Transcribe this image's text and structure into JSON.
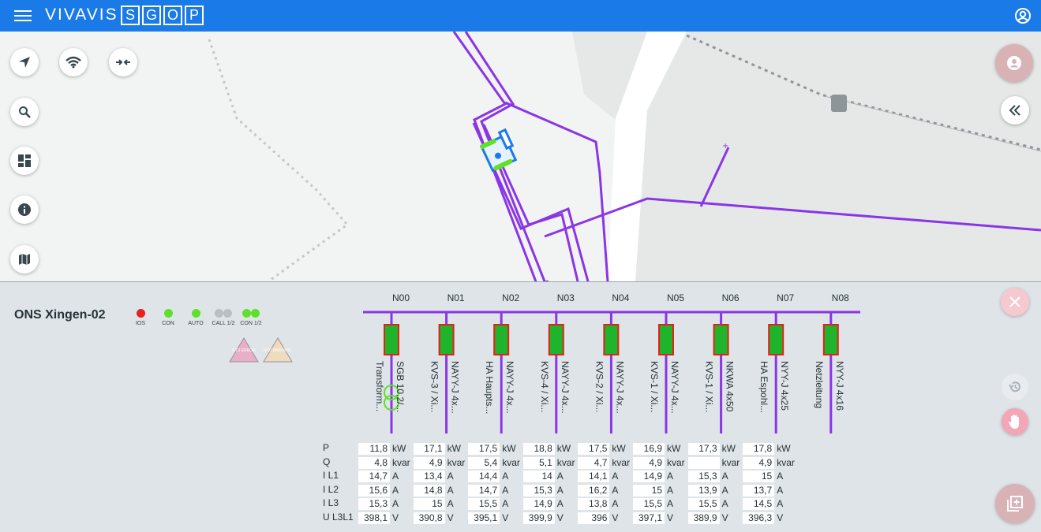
{
  "header": {
    "brand": "VIVAVIS",
    "logo_letters": [
      "S",
      "G",
      "O",
      "P"
    ]
  },
  "map_tools": {
    "left": [
      "location-arrow-icon",
      "wifi-icon",
      "compress-arrows-icon",
      "search-icon",
      "dashboard-icon",
      "info-icon",
      "map-icon"
    ],
    "right": [
      "user-circle-icon",
      "collapse-double-chevron-icon"
    ]
  },
  "station": {
    "name": "ONS Xingen-02",
    "indicators": [
      {
        "label": "IOS",
        "colors": [
          "#e8201e"
        ]
      },
      {
        "label": "CON",
        "colors": [
          "#5fe02a"
        ]
      },
      {
        "label": "AUTO",
        "colors": [
          "#5fe02a"
        ]
      },
      {
        "label": "CALL 1/2",
        "colors": [
          "#b9bfc3",
          "#b9bfc3"
        ]
      },
      {
        "label": "CON 1/2",
        "colors": [
          "#5fe02a",
          "#5fe02a"
        ]
      }
    ],
    "warnings": [
      {
        "label": "RTU ERROR",
        "color": "#e7b0c7"
      },
      {
        "label": "RTU WARNING",
        "color": "#eedcc0"
      }
    ]
  },
  "feeders": [
    {
      "id": "N00",
      "desc1": "Transform...",
      "desc2": "SGB 10,2/..."
    },
    {
      "id": "N01",
      "desc1": "KVS-3 / Xi...",
      "desc2": "NAYY-J 4x..."
    },
    {
      "id": "N02",
      "desc1": "HA Haupts...",
      "desc2": "NAYY-J 4x..."
    },
    {
      "id": "N03",
      "desc1": "KVS-4 / Xi...",
      "desc2": "NAYY-J 4x..."
    },
    {
      "id": "N04",
      "desc1": "KVS-2 / Xi...",
      "desc2": "NAYY-J 4x..."
    },
    {
      "id": "N05",
      "desc1": "KVS-1 / Xi...",
      "desc2": "NAYY-J 4x..."
    },
    {
      "id": "N06",
      "desc1": "KVS-1 / Xi...",
      "desc2": "NKWA 4x50"
    },
    {
      "id": "N07",
      "desc1": "HA Espohl...",
      "desc2": "NYY-J 4x25"
    },
    {
      "id": "N08",
      "desc1": "Netzleitung",
      "desc2": "NYY-J 4x16"
    }
  ],
  "measurements": {
    "rows": [
      {
        "label": "P",
        "unit": "kW",
        "values": [
          "11,8",
          "17,1",
          "17,5",
          "18,8",
          "17,5",
          "16,9",
          "17,3",
          "17,8"
        ]
      },
      {
        "label": "Q",
        "unit": "kvar",
        "values": [
          "4,8",
          "4,9",
          "5,4",
          "5,1",
          "4,7",
          "4,9",
          "",
          "4,9"
        ]
      },
      {
        "label": "I L1",
        "unit": "A",
        "values": [
          "14,7",
          "13,4",
          "14,4",
          "14",
          "14,1",
          "14,9",
          "15,3",
          "15"
        ]
      },
      {
        "label": "I L2",
        "unit": "A",
        "values": [
          "15,6",
          "14,8",
          "14,7",
          "15,3",
          "16,2",
          "15",
          "13,9",
          "13,7"
        ]
      },
      {
        "label": "I L3",
        "unit": "A",
        "values": [
          "15,3",
          "15",
          "15,5",
          "14,9",
          "13,8",
          "15,5",
          "15,5",
          "14,5"
        ]
      },
      {
        "label": "U L3L1",
        "unit": "V",
        "values": [
          "398,1",
          "390,8",
          "395,1",
          "399,9",
          "396",
          "397,1",
          "389,9",
          "396,3"
        ]
      }
    ]
  },
  "panel_buttons": [
    "close-icon",
    "history-icon",
    "hand-icon",
    "add-window-icon"
  ],
  "colors": {
    "header": "#1a7ae8",
    "line": "#8a35e6",
    "breaker_fill": "#1fb42b",
    "breaker_border": "#e32117",
    "pink_button": "#f2a6b6"
  }
}
